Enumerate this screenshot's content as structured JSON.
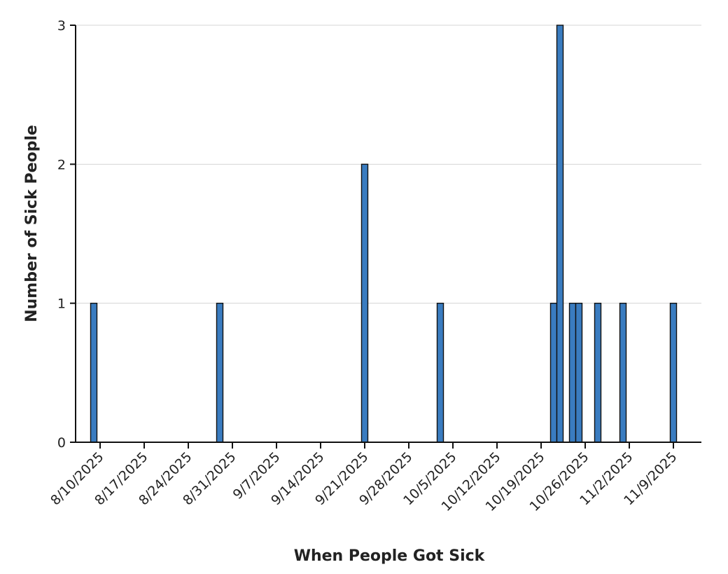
{
  "chart_data": {
    "type": "bar",
    "title": "",
    "xlabel": "When People Got Sick",
    "ylabel": "Number of Sick People",
    "ylim": [
      0,
      3
    ],
    "y_ticks": [
      0,
      1,
      2,
      3
    ],
    "grid": "horizontal",
    "x_ticks": [
      "8/10/2025",
      "8/17/2025",
      "8/24/2025",
      "8/31/2025",
      "9/7/2025",
      "9/14/2025",
      "9/21/2025",
      "9/28/2025",
      "10/5/2025",
      "10/12/2025",
      "10/19/2025",
      "10/26/2025",
      "11/2/2025",
      "11/9/2025"
    ],
    "bar_color": "#3a7cc0",
    "data": [
      {
        "date": "2025-08-09",
        "value": 1
      },
      {
        "date": "2025-08-29",
        "value": 1
      },
      {
        "date": "2025-09-21",
        "value": 2
      },
      {
        "date": "2025-10-03",
        "value": 1
      },
      {
        "date": "2025-10-21",
        "value": 1
      },
      {
        "date": "2025-10-22",
        "value": 3
      },
      {
        "date": "2025-10-24",
        "value": 1
      },
      {
        "date": "2025-10-25",
        "value": 1
      },
      {
        "date": "2025-10-28",
        "value": 1
      },
      {
        "date": "2025-11-01",
        "value": 1
      },
      {
        "date": "2025-11-09",
        "value": 1
      }
    ]
  }
}
